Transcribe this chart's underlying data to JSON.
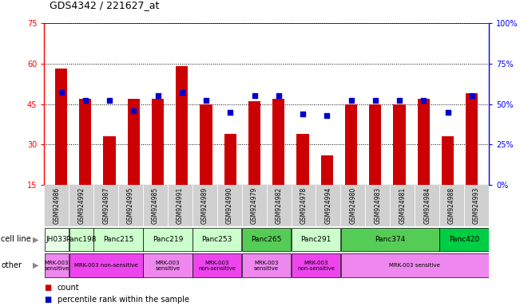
{
  "title": "GDS4342 / 221627_at",
  "samples": [
    "GSM924986",
    "GSM924992",
    "GSM924987",
    "GSM924995",
    "GSM924985",
    "GSM924991",
    "GSM924989",
    "GSM924990",
    "GSM924979",
    "GSM924982",
    "GSM924978",
    "GSM924994",
    "GSM924980",
    "GSM924983",
    "GSM924981",
    "GSM924984",
    "GSM924988",
    "GSM924993"
  ],
  "counts": [
    58,
    47,
    33,
    47,
    47,
    59,
    45,
    34,
    46,
    47,
    34,
    26,
    45,
    45,
    45,
    47,
    33,
    49
  ],
  "percentiles": [
    57,
    52,
    52,
    46,
    55,
    57,
    52,
    45,
    55,
    55,
    44,
    43,
    52,
    52,
    52,
    52,
    45,
    55
  ],
  "cell_lines": [
    {
      "name": "JH033",
      "start": 0,
      "end": 1,
      "color": "#e8ffe8"
    },
    {
      "name": "Panc198",
      "start": 1,
      "end": 2,
      "color": "#ccffcc"
    },
    {
      "name": "Panc215",
      "start": 2,
      "end": 4,
      "color": "#ccffcc"
    },
    {
      "name": "Panc219",
      "start": 4,
      "end": 6,
      "color": "#ccffcc"
    },
    {
      "name": "Panc253",
      "start": 6,
      "end": 8,
      "color": "#ccffcc"
    },
    {
      "name": "Panc265",
      "start": 8,
      "end": 10,
      "color": "#55cc55"
    },
    {
      "name": "Panc291",
      "start": 10,
      "end": 12,
      "color": "#ccffcc"
    },
    {
      "name": "Panc374",
      "start": 12,
      "end": 16,
      "color": "#55cc55"
    },
    {
      "name": "Panc420",
      "start": 16,
      "end": 18,
      "color": "#00cc44"
    }
  ],
  "other_groups": [
    {
      "label": "MRK-003\nsensitive",
      "start": 0,
      "end": 1,
      "color": "#ee88ee"
    },
    {
      "label": "MRK-003 non-sensitive",
      "start": 1,
      "end": 4,
      "color": "#ee44ee"
    },
    {
      "label": "MRK-003\nsensitive",
      "start": 4,
      "end": 6,
      "color": "#ee88ee"
    },
    {
      "label": "MRK-003\nnon-sensitive",
      "start": 6,
      "end": 8,
      "color": "#ee44ee"
    },
    {
      "label": "MRK-003\nsensitive",
      "start": 8,
      "end": 10,
      "color": "#ee88ee"
    },
    {
      "label": "MRK-003\nnon-sensitive",
      "start": 10,
      "end": 12,
      "color": "#ee44ee"
    },
    {
      "label": "MRK-003 sensitive",
      "start": 12,
      "end": 18,
      "color": "#ee88ee"
    }
  ],
  "ylim_left": [
    15,
    75
  ],
  "ylim_right": [
    0,
    100
  ],
  "yticks_left": [
    15,
    30,
    45,
    60,
    75
  ],
  "yticks_right": [
    0,
    25,
    50,
    75,
    100
  ],
  "bar_color": "#cc0000",
  "dot_color": "#0000cc",
  "bar_width": 0.5,
  "plot_bg": "#ffffff",
  "fig_bg": "#ffffff",
  "xtick_bg": "#d0d0d0"
}
